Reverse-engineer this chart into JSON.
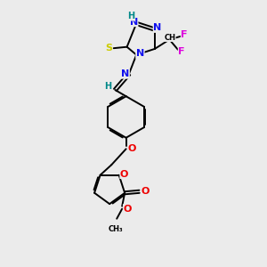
{
  "bg_color": "#ebebeb",
  "bond_color": "#000000",
  "bond_width": 1.4,
  "atom_colors": {
    "N": "#1010ee",
    "O": "#ee0000",
    "S": "#cccc00",
    "F": "#dd00dd",
    "H": "#008888",
    "C": "#000000"
  },
  "font_size": 8,
  "figsize": [
    3.0,
    3.0
  ],
  "dpi": 100,
  "xlim": [
    0,
    10
  ],
  "ylim": [
    0,
    10
  ]
}
